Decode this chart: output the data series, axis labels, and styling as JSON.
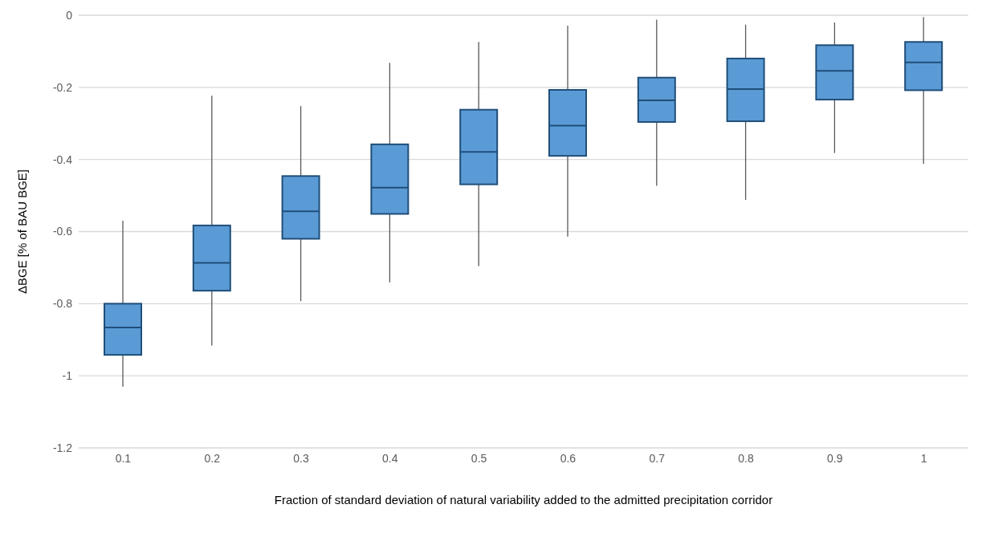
{
  "chart_data": {
    "type": "box",
    "xlabel": "Fraction of standard deviation of natural variability added to the admitted precipitation corridor",
    "ylabel": "ΔBGE [% of BAU BGE]",
    "categories": [
      "0.1",
      "0.2",
      "0.3",
      "0.4",
      "0.5",
      "0.6",
      "0.7",
      "0.8",
      "0.9",
      "1"
    ],
    "color": "#5b9bd5",
    "boxes": [
      {
        "low": -1.03,
        "q1": -0.942,
        "median": -0.866,
        "q3": -0.8,
        "high": -0.57
      },
      {
        "low": -0.916,
        "q1": -0.764,
        "median": -0.687,
        "q3": -0.583,
        "high": -0.223
      },
      {
        "low": -0.793,
        "q1": -0.62,
        "median": -0.544,
        "q3": -0.446,
        "high": -0.252
      },
      {
        "low": -0.741,
        "q1": -0.551,
        "median": -0.478,
        "q3": -0.358,
        "high": -0.132
      },
      {
        "low": -0.696,
        "q1": -0.469,
        "median": -0.379,
        "q3": -0.262,
        "high": -0.074
      },
      {
        "low": -0.614,
        "q1": -0.39,
        "median": -0.306,
        "q3": -0.207,
        "high": -0.029
      },
      {
        "low": -0.473,
        "q1": -0.296,
        "median": -0.236,
        "q3": -0.173,
        "high": -0.012
      },
      {
        "low": -0.512,
        "q1": -0.294,
        "median": -0.205,
        "q3": -0.12,
        "high": -0.026
      },
      {
        "low": -0.382,
        "q1": -0.234,
        "median": -0.154,
        "q3": -0.083,
        "high": -0.02
      },
      {
        "low": -0.412,
        "q1": -0.208,
        "median": -0.131,
        "q3": -0.074,
        "high": -0.005
      }
    ],
    "ylim": [
      -1.2,
      0
    ],
    "yticks": [
      -1.2,
      -1,
      -0.8,
      -0.6,
      -0.4,
      -0.2,
      0
    ],
    "grid": "y"
  }
}
